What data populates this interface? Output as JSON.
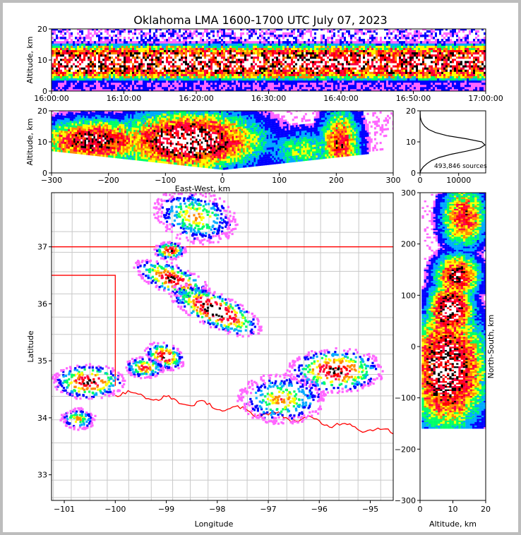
{
  "chart_data": [
    {
      "id": "time-height",
      "type": "heatmap",
      "title": "Oklahoma LMA 1600-1700 UTC July 07, 2023",
      "ylabel": "Altitude, km",
      "ylim": [
        0,
        20
      ],
      "yticks": [
        "0",
        "10",
        "20"
      ],
      "xticks": [
        "16:00:00",
        "16:10:00",
        "16:20:00",
        "16:30:00",
        "16:40:00",
        "16:50:00",
        "17:00:00"
      ],
      "density_profile": {
        "center_km": 9,
        "spread_km": 4
      }
    },
    {
      "id": "east-west-altitude",
      "type": "heatmap",
      "xlabel": "East-West, km",
      "ylabel": "Altitude, km",
      "xlim": [
        -300,
        300
      ],
      "ylim": [
        0,
        20
      ],
      "xticks": [
        "−300",
        "−200",
        "−100",
        "0",
        "100",
        "200",
        "300"
      ],
      "yticks": [
        "0",
        "10",
        "20"
      ],
      "cells": [
        {
          "x": -225,
          "z": 10,
          "w": 60,
          "h": 3,
          "level": 6
        },
        {
          "x": -60,
          "z": 10,
          "w": 75,
          "h": 4,
          "level": 7
        },
        {
          "x": 140,
          "z": 7,
          "w": 40,
          "h": 3,
          "level": 3
        },
        {
          "x": 205,
          "z": 9,
          "w": 22,
          "h": 5,
          "level": 5
        }
      ]
    },
    {
      "id": "altitude-histogram",
      "type": "line",
      "ylim": [
        0,
        20
      ],
      "xlim": [
        0,
        17000
      ],
      "xticks": [
        "0",
        "10000"
      ],
      "yticks": [
        "0",
        "10",
        "20"
      ],
      "annotation": "493,846 sources",
      "x": [
        0,
        300,
        900,
        1800,
        3000,
        5000,
        8000,
        12000,
        15500,
        16800,
        16000,
        12000,
        7000,
        4000,
        2200,
        1200,
        600,
        250,
        80,
        20
      ],
      "y": [
        0,
        1,
        2,
        3,
        4,
        5,
        6,
        7,
        8,
        9,
        10,
        11,
        12,
        13,
        14,
        15,
        16,
        17,
        18,
        20
      ]
    },
    {
      "id": "plan-view",
      "type": "heatmap",
      "xlabel": "Longitude",
      "ylabel": "Latitude",
      "xlim": [
        -101.25,
        -94.55
      ],
      "ylim": [
        32.55,
        37.95
      ],
      "xticks": [
        "−101",
        "−100",
        "−99",
        "−98",
        "−97",
        "−96",
        "−95"
      ],
      "yticks": [
        "33",
        "34",
        "35",
        "36",
        "37"
      ],
      "cells": [
        {
          "lon": -98.45,
          "lat": 37.55,
          "rx": 0.55,
          "ry": 0.3,
          "angle": 25,
          "level": 4
        },
        {
          "lon": -98.95,
          "lat": 36.95,
          "rx": 0.2,
          "ry": 0.1,
          "angle": 0,
          "level": 6
        },
        {
          "lon": -98.9,
          "lat": 36.45,
          "rx": 0.55,
          "ry": 0.17,
          "angle": 32,
          "level": 6
        },
        {
          "lon": -98.05,
          "lat": 35.9,
          "rx": 0.7,
          "ry": 0.2,
          "angle": 35,
          "level": 7
        },
        {
          "lon": -99.05,
          "lat": 35.1,
          "rx": 0.28,
          "ry": 0.15,
          "angle": 35,
          "level": 6
        },
        {
          "lon": -99.45,
          "lat": 34.9,
          "rx": 0.25,
          "ry": 0.12,
          "angle": 0,
          "level": 5
        },
        {
          "lon": -100.55,
          "lat": 34.65,
          "rx": 0.45,
          "ry": 0.2,
          "angle": 0,
          "level": 6
        },
        {
          "lon": -100.75,
          "lat": 34.0,
          "rx": 0.22,
          "ry": 0.12,
          "angle": 0,
          "level": 4
        },
        {
          "lon": -96.75,
          "lat": 34.35,
          "rx": 0.55,
          "ry": 0.28,
          "angle": 0,
          "level": 4
        },
        {
          "lon": -95.7,
          "lat": 34.85,
          "rx": 0.6,
          "ry": 0.25,
          "angle": 0,
          "level": 6
        }
      ],
      "colors": {
        "state_border": "#ff0000",
        "county_lines": "#c8c8c8"
      }
    },
    {
      "id": "altitude-north-south",
      "type": "heatmap",
      "xlabel": "Altitude, km",
      "ylabel": "North-South, km",
      "xlim": [
        0,
        20
      ],
      "ylim": [
        -300,
        300
      ],
      "xticks": [
        "0",
        "10",
        "20"
      ],
      "yticks": [
        "−300",
        "−200",
        "−100",
        "0",
        "100",
        "200",
        "300"
      ],
      "cells": [
        {
          "z": 13,
          "y": 250,
          "w": 3,
          "h": 35,
          "level": 5
        },
        {
          "z": 11,
          "y": 135,
          "w": 3,
          "h": 25,
          "level": 6
        },
        {
          "z": 9,
          "y": 70,
          "w": 3,
          "h": 30,
          "level": 7
        },
        {
          "z": 8,
          "y": -45,
          "w": 5,
          "h": 65,
          "level": 7
        }
      ]
    }
  ],
  "colorscale": [
    "#ff66ff",
    "#0000ff",
    "#00aaff",
    "#00ff66",
    "#ffff00",
    "#ff8800",
    "#ff0044",
    "#ff0000",
    "#000000",
    "#ffffff"
  ]
}
